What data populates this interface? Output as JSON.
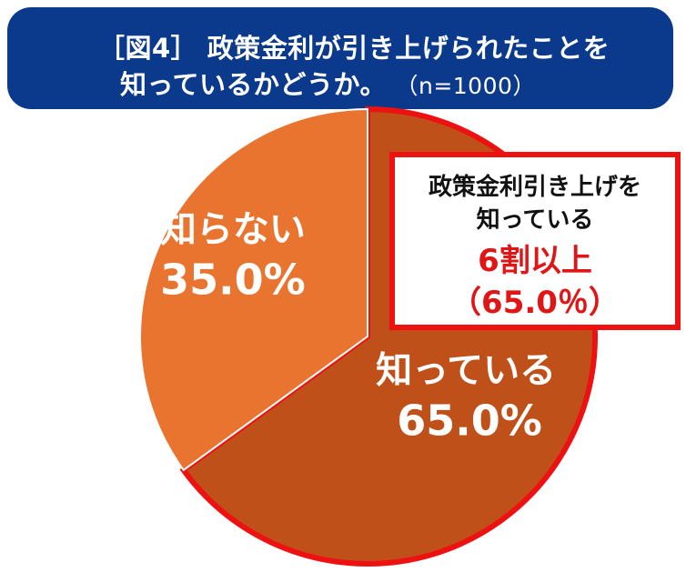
{
  "title": {
    "line1": "［図4］ 政策金利が引き上げられたことを",
    "line2": "知っているかどうか。",
    "sample": "（n=1000）"
  },
  "chart_data": {
    "type": "pie",
    "title": "［図4］ 政策金利が引き上げられたことを知っているかどうか。（n=1000）",
    "slices": [
      {
        "name": "知っている",
        "value": 65.0,
        "label": "65.0%",
        "color": "#c0501a",
        "highlighted": true
      },
      {
        "name": "知らない",
        "value": 35.0,
        "label": "35.0%",
        "color": "#e9742f",
        "highlighted": false
      }
    ],
    "start": "12 o'clock",
    "direction": "clockwise",
    "highlight_outline_color": "#ee1111"
  },
  "callout": {
    "line1": "政策金利引き上げを",
    "line2": "知っている",
    "highlight": "6割以上",
    "percent": "（65.0％）"
  },
  "colors": {
    "banner": "#0b3a8c",
    "accent_red": "#ee1111"
  }
}
